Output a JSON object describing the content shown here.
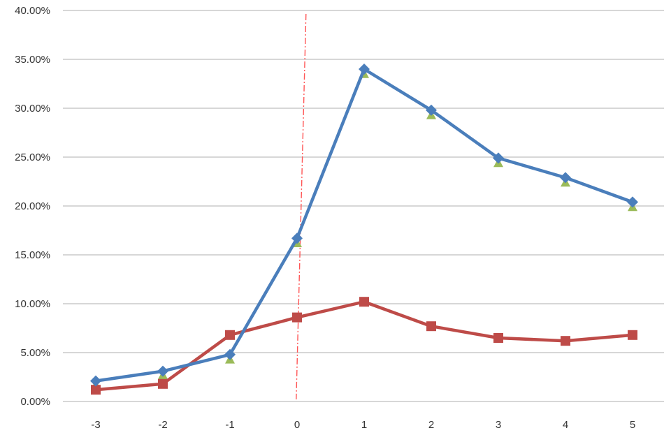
{
  "chart_data": {
    "type": "line",
    "title": "",
    "xlabel": "",
    "ylabel": "",
    "x": [
      -3,
      -2,
      -1,
      0,
      1,
      2,
      3,
      4,
      5
    ],
    "x_tick_labels": [
      "-3",
      "-2",
      "-1",
      "0",
      "1",
      "2",
      "3",
      "4",
      "5"
    ],
    "ylim": [
      0,
      40
    ],
    "y_tick_labels": [
      "0.00%",
      "5.00%",
      "10.00%",
      "15.00%",
      "20.00%",
      "25.00%",
      "30.00%",
      "35.00%",
      "40.00%"
    ],
    "grid": true,
    "legend": "none",
    "series": [
      {
        "marker": "diamond",
        "color": "#4a7ebb",
        "values": [
          2.1,
          3.1,
          4.8,
          16.7,
          34.0,
          29.8,
          24.9,
          22.9,
          20.4
        ]
      },
      {
        "marker": "triangle",
        "color": "#9bbb59",
        "values": [
          2.0,
          3.0,
          4.6,
          16.5,
          33.8,
          29.6,
          24.7,
          22.7,
          20.2
        ]
      },
      {
        "marker": "square",
        "color": "#be4b48",
        "values": [
          1.2,
          1.8,
          6.8,
          8.6,
          10.2,
          7.7,
          6.5,
          6.2,
          6.8
        ]
      }
    ],
    "annotations": [
      {
        "type": "vertical-line",
        "x": 0.05,
        "style": "dash-dot",
        "color": "#ff5555"
      }
    ]
  }
}
